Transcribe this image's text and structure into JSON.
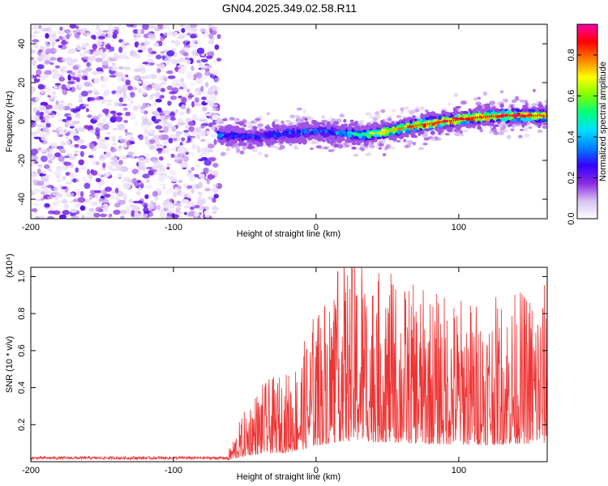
{
  "title": "GN04.2025.349.02.58.R11",
  "chart_data": [
    {
      "type": "heatmap",
      "name": "spectrogram",
      "xlabel": "Height of straight line (km)",
      "ylabel": "Frequency (Hz)",
      "xlim": [
        -200,
        162
      ],
      "ylim": [
        -50,
        50
      ],
      "xticks": [
        "-200",
        "-100",
        "0",
        "100"
      ],
      "xtick_values": [
        -200,
        -100,
        0,
        100
      ],
      "yticks": [
        "-40",
        "-20",
        "0",
        "20",
        "40"
      ],
      "ytick_values": [
        -40,
        -20,
        0,
        20,
        40
      ],
      "colorbar": {
        "label": "Normalized spectral amplitude",
        "range": [
          0.0,
          0.95
        ],
        "ticks": [
          "0.0",
          "0.2",
          "0.4",
          "0.6",
          "0.8"
        ],
        "tick_values": [
          0.0,
          0.2,
          0.4,
          0.6,
          0.8
        ],
        "colors": [
          "#ffffff",
          "#d9c2f2",
          "#8a2be2",
          "#3300ff",
          "#0080ff",
          "#00e0ff",
          "#00ff80",
          "#80ff00",
          "#ffff00",
          "#ff8000",
          "#ff0000",
          "#ff00aa"
        ]
      },
      "noise_region_x": [
        -200,
        -68
      ],
      "signal_band": {
        "x": [
          -68,
          -40,
          -20,
          0,
          20,
          35,
          50,
          70,
          90,
          110,
          130,
          150,
          162
        ],
        "center_freq": [
          -7,
          -8,
          -6,
          -5,
          -6,
          -7,
          -5,
          -2,
          0,
          2,
          3,
          3,
          3
        ],
        "peak_amplitude": [
          0.35,
          0.3,
          0.35,
          0.35,
          0.4,
          0.6,
          0.75,
          0.85,
          0.9,
          0.9,
          0.9,
          0.85,
          0.8
        ]
      }
    },
    {
      "type": "line",
      "name": "snr",
      "xlabel": "Height of straight line (km)",
      "ylabel": "SNR (10 * v/v)",
      "scale_label": "(x10⁴)",
      "xlim": [
        -200,
        162
      ],
      "ylim": [
        0,
        1.05
      ],
      "xticks": [
        "-200",
        "-100",
        "0",
        "100"
      ],
      "xtick_values": [
        -200,
        -100,
        0,
        100
      ],
      "yticks": [
        "0.2",
        "0.4",
        "0.6",
        "0.8",
        "1.0"
      ],
      "ytick_values": [
        0.2,
        0.4,
        0.6,
        0.8,
        1.0
      ],
      "series": [
        {
          "name": "SNR",
          "color": "#ee3333",
          "envelope_x": [
            -200,
            -70,
            -62,
            -55,
            -45,
            -35,
            -20,
            -10,
            0,
            10,
            20,
            30,
            35,
            40,
            50,
            60,
            80,
            100,
            120,
            140,
            162
          ],
          "envelope_y": [
            0.02,
            0.02,
            0.02,
            0.08,
            0.15,
            0.18,
            0.2,
            0.25,
            0.35,
            0.4,
            0.45,
            0.45,
            0.45,
            0.42,
            0.42,
            0.4,
            0.38,
            0.37,
            0.36,
            0.38,
            0.4
          ],
          "peak_x": 32,
          "peak_y": 1.05
        }
      ]
    }
  ]
}
